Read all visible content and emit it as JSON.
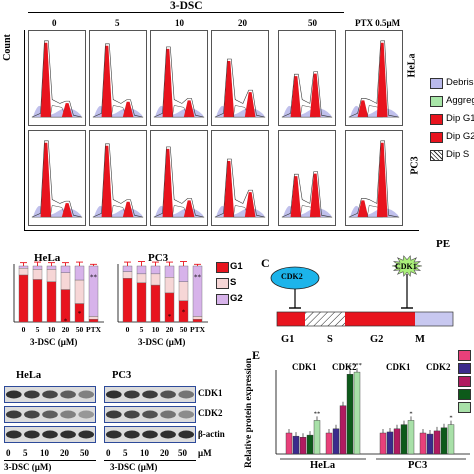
{
  "panelA": {
    "compound": "3-DSC",
    "doses": [
      "0",
      "5",
      "10",
      "20",
      "50",
      "PTX 0.5μM"
    ],
    "cells": [
      "HeLa",
      "PC3"
    ],
    "y_axis": "Count",
    "x_axis": "PE",
    "legend": [
      {
        "label": "Debris",
        "color": "#b9b9ea"
      },
      {
        "label": "Aggregates",
        "color": "#a8e6a8"
      },
      {
        "label": "Dip G1",
        "color": "#e8141e"
      },
      {
        "label": "Dip G2",
        "color": "#e8141e"
      },
      {
        "label": "Dip S",
        "color": "hatch"
      }
    ]
  },
  "panelB": {
    "charts": [
      {
        "title": "HeLa",
        "categories": [
          "0",
          "5",
          "10",
          "20",
          "50",
          "PTX"
        ],
        "xlabel": "3-DSC (μM)"
      },
      {
        "title": "PC3",
        "categories": [
          "0",
          "5",
          "10",
          "20",
          "50",
          "PTX"
        ],
        "xlabel": "3-DSC (μM)"
      }
    ],
    "legend": [
      {
        "label": "G1",
        "color": "#e8141e"
      },
      {
        "label": "S",
        "color": "#f6d6d6"
      },
      {
        "label": "G2",
        "color": "#d7b3ea"
      }
    ],
    "sig": [
      "*",
      "*",
      "**",
      "*",
      "*",
      "**"
    ]
  },
  "panelC": {
    "letter": "C",
    "cdk2": "CDK2",
    "cdk1": "CDK1",
    "phases": [
      "G1",
      "S",
      "G2",
      "M"
    ]
  },
  "panelD": {
    "cells": [
      "HeLa",
      "PC3"
    ],
    "proteins": [
      "CDK1",
      "CDK2",
      "β-actin"
    ],
    "doses": [
      "0",
      "5",
      "10",
      "20",
      "50",
      "μM"
    ],
    "xlabel": "3-DSC (μM)"
  },
  "panelE": {
    "letter": "E",
    "ylabel": "Relative protein expression",
    "groups": [
      "HeLa",
      "PC3"
    ],
    "proteins": [
      "CDK1",
      "CDK2",
      "CDK1",
      "CDK2"
    ],
    "series_colors": [
      "#e8407a",
      "#3b2a8c",
      "#b01a60",
      "#0d5a1a",
      "#a8e0a8"
    ],
    "sig": [
      "**",
      "*",
      "***",
      "*",
      "*"
    ]
  },
  "chart_data": [
    {
      "type": "bar",
      "title": "HeLa",
      "categories": [
        "0",
        "5",
        "10",
        "20",
        "50",
        "PTX"
      ],
      "xlabel": "3-DSC (μM)",
      "ylim": [
        0,
        1
      ],
      "series": [
        {
          "name": "G1",
          "values": [
            0.84,
            0.76,
            0.72,
            0.58,
            0.33,
            0.05
          ]
        },
        {
          "name": "S",
          "values": [
            0.12,
            0.18,
            0.22,
            0.3,
            0.42,
            0.05
          ]
        },
        {
          "name": "G2",
          "values": [
            0.04,
            0.06,
            0.06,
            0.12,
            0.25,
            0.9
          ]
        }
      ],
      "errors": [
        0.06,
        0.07,
        0.06,
        0.06,
        0.07,
        0.03
      ]
    },
    {
      "type": "bar",
      "title": "PC3",
      "categories": [
        "0",
        "5",
        "10",
        "20",
        "50",
        "PTX"
      ],
      "xlabel": "3-DSC (μM)",
      "ylim": [
        0,
        1
      ],
      "series": [
        {
          "name": "G1",
          "values": [
            0.78,
            0.7,
            0.66,
            0.52,
            0.38,
            0.05
          ]
        },
        {
          "name": "S",
          "values": [
            0.12,
            0.16,
            0.2,
            0.28,
            0.34,
            0.05
          ]
        },
        {
          "name": "G2",
          "values": [
            0.1,
            0.14,
            0.14,
            0.2,
            0.28,
            0.9
          ]
        }
      ],
      "errors": [
        0.07,
        0.08,
        0.07,
        0.07,
        0.08,
        0.03
      ]
    },
    {
      "type": "bar",
      "title": "",
      "ylabel": "Relative protein expression",
      "categories": [
        "HeLa CDK1",
        "HeLa CDK2",
        "PC3 CDK1",
        "PC3 CDK2"
      ],
      "ylim": [
        0,
        4
      ],
      "series": [
        {
          "values": [
            1.0,
            1.0,
            1.0,
            1.0
          ]
        },
        {
          "values": [
            0.85,
            1.2,
            1.05,
            0.95
          ]
        },
        {
          "values": [
            0.8,
            2.3,
            1.2,
            1.1
          ]
        },
        {
          "values": [
            0.9,
            3.8,
            1.4,
            1.25
          ]
        },
        {
          "values": [
            1.6,
            3.9,
            1.6,
            1.4
          ]
        }
      ]
    }
  ]
}
